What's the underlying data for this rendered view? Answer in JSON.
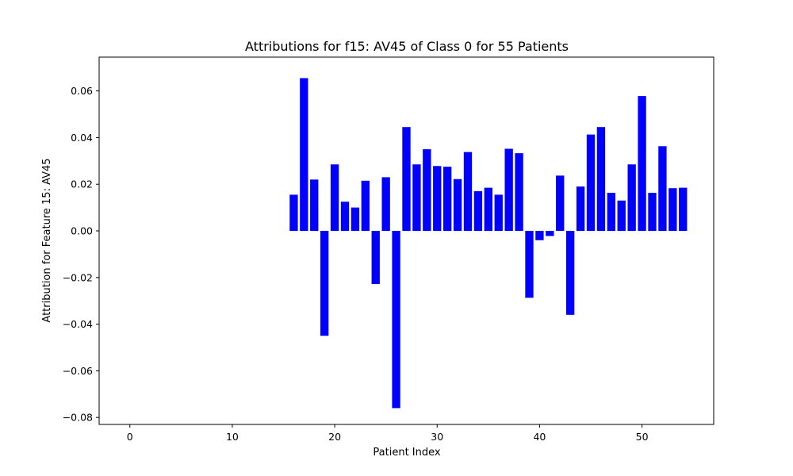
{
  "chart_data": {
    "type": "bar",
    "title": "Attributions for f15: AV45 of Class 0 for 55 Patients",
    "xlabel": "Patient Index",
    "ylabel": "Attribution for Feature 15: AV45",
    "bar_color": "#0000ff",
    "xlim": [
      -3,
      57
    ],
    "ylim": [
      -0.083,
      0.0745
    ],
    "xticks": [
      0,
      10,
      20,
      30,
      40,
      50
    ],
    "xtick_labels": [
      "0",
      "10",
      "20",
      "30",
      "40",
      "50"
    ],
    "yticks": [
      -0.08,
      -0.06,
      -0.04,
      -0.02,
      0.0,
      0.02,
      0.04,
      0.06
    ],
    "ytick_labels": [
      "−0.08",
      "−0.06",
      "−0.04",
      "−0.02",
      "0.00",
      "0.02",
      "0.04",
      "0.06"
    ],
    "x": [
      16,
      17,
      18,
      19,
      20,
      21,
      22,
      23,
      24,
      25,
      26,
      27,
      28,
      29,
      30,
      31,
      32,
      33,
      34,
      35,
      36,
      37,
      38,
      39,
      40,
      41,
      42,
      43,
      44,
      45,
      46,
      47,
      48,
      49,
      50,
      51,
      52,
      53,
      54
    ],
    "values": [
      0.0155,
      0.0655,
      0.022,
      -0.045,
      0.0285,
      0.0125,
      0.01,
      0.0215,
      -0.0228,
      0.023,
      -0.076,
      0.0445,
      0.0285,
      0.035,
      0.0278,
      0.0275,
      0.0222,
      0.0338,
      0.017,
      0.0185,
      0.0155,
      0.0352,
      0.0333,
      -0.0287,
      -0.004,
      -0.0022,
      0.0237,
      -0.036,
      0.019,
      0.0413,
      0.0445,
      0.0163,
      0.013,
      0.0285,
      0.0578,
      0.0163,
      0.0363,
      0.0183,
      0.0185
    ],
    "grid": false,
    "legend": false
  }
}
